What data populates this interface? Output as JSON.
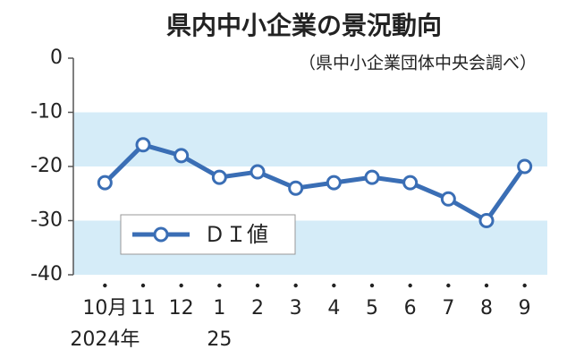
{
  "chart_data": {
    "type": "line",
    "title": "県内中小企業の景況動向",
    "subtitle": "（県中小企業団体中央会調べ）",
    "categories": [
      "10月",
      "11",
      "12",
      "1",
      "2",
      "3",
      "4",
      "5",
      "6",
      "7",
      "8",
      "9"
    ],
    "year_labels": [
      "2024年",
      null,
      null,
      "25",
      null,
      null,
      null,
      null,
      null,
      null,
      null,
      null
    ],
    "series": [
      {
        "name": "ＤＩ値",
        "color": "#3a6eb5",
        "values": [
          -23,
          -16,
          -18,
          -22,
          -21,
          -24,
          -23,
          -22,
          -23,
          -26,
          -30,
          -20
        ]
      }
    ],
    "ylim": [
      -40,
      0
    ],
    "yticks": [
      0,
      -10,
      -20,
      -30,
      -40
    ],
    "bands": [
      [
        -20,
        -10
      ],
      [
        -40,
        -30
      ]
    ],
    "band_color": "#d5ecf8"
  }
}
